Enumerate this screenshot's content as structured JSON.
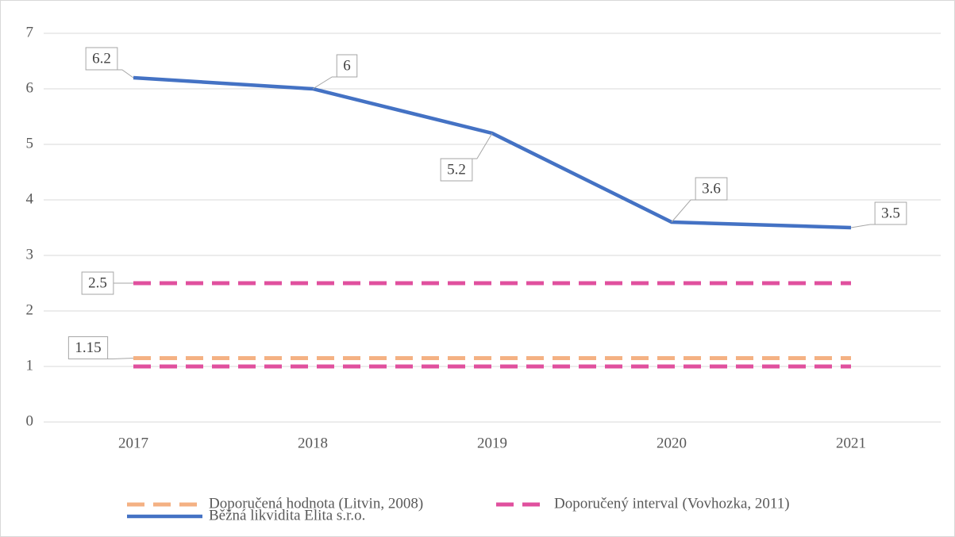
{
  "chart_data": {
    "type": "line",
    "categories": [
      "2017",
      "2018",
      "2019",
      "2020",
      "2021"
    ],
    "series": [
      {
        "name": "Doporučená hodnota (Litvin, 2008)",
        "color": "#f4b183",
        "dash": true,
        "values": [
          1.15,
          1.15,
          1.15,
          1.15,
          1.15
        ],
        "data_labels": "first"
      },
      {
        "name": "Doporučený interval (Vovhozka, 2011)",
        "color": "#e0509e",
        "dash": true,
        "values": [
          2.5,
          2.5,
          2.5,
          2.5,
          2.5
        ],
        "data_labels": "first"
      },
      {
        "name": "Doporučený interval (Vovhozka, 2011)",
        "color": "#e0509e",
        "dash": true,
        "values": [
          1,
          1,
          1,
          1,
          1
        ],
        "data_labels": "none"
      },
      {
        "name": "Běžná likvidita Elita s.r.o.",
        "color": "#4472c4",
        "dash": false,
        "values": [
          6.2,
          6,
          5.2,
          3.6,
          3.5
        ],
        "data_labels": "all"
      }
    ],
    "ylim": [
      0,
      7
    ],
    "yticks": [
      0,
      1,
      2,
      3,
      4,
      5,
      6,
      7
    ],
    "grid": true,
    "legend": "bottom"
  }
}
